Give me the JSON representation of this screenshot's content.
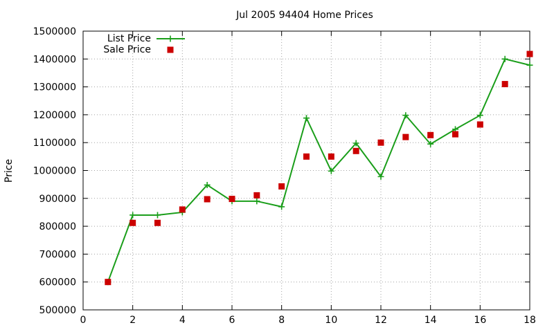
{
  "chart_data": {
    "type": "line",
    "title": "Jul 2005 94404 Home Prices",
    "xlabel": "",
    "ylabel": "Price",
    "xlim": [
      0,
      18
    ],
    "ylim": [
      500000,
      1500000
    ],
    "xticks": [
      0,
      2,
      4,
      6,
      8,
      10,
      12,
      14,
      16,
      18
    ],
    "yticks": [
      500000,
      600000,
      700000,
      800000,
      900000,
      1000000,
      1100000,
      1200000,
      1300000,
      1400000,
      1500000
    ],
    "grid": true,
    "legend_position": "top-left",
    "series": [
      {
        "name": "List Price",
        "kind": "line-with-markers",
        "marker": "plus",
        "color": "#1a9e1a",
        "x": [
          1,
          2,
          3,
          4,
          5,
          6,
          7,
          8,
          9,
          10,
          11,
          12,
          13,
          14,
          15,
          16,
          17,
          18
        ],
        "y": [
          600000,
          840000,
          840000,
          850000,
          948000,
          890000,
          890000,
          870000,
          1188000,
          998000,
          1098000,
          978000,
          1198000,
          1095000,
          1148000,
          1198000,
          1400000,
          1378000
        ]
      },
      {
        "name": "Sale Price",
        "kind": "points",
        "marker": "square",
        "color": "#cc0000",
        "x": [
          1,
          2,
          3,
          4,
          5,
          6,
          7,
          8,
          9,
          10,
          11,
          12,
          13,
          14,
          15,
          16,
          17,
          18
        ],
        "y": [
          600000,
          812000,
          812000,
          860000,
          897000,
          898000,
          911000,
          943000,
          1050000,
          1050000,
          1070000,
          1100000,
          1120000,
          1127000,
          1130000,
          1165000,
          1310000,
          1418000
        ]
      }
    ]
  }
}
